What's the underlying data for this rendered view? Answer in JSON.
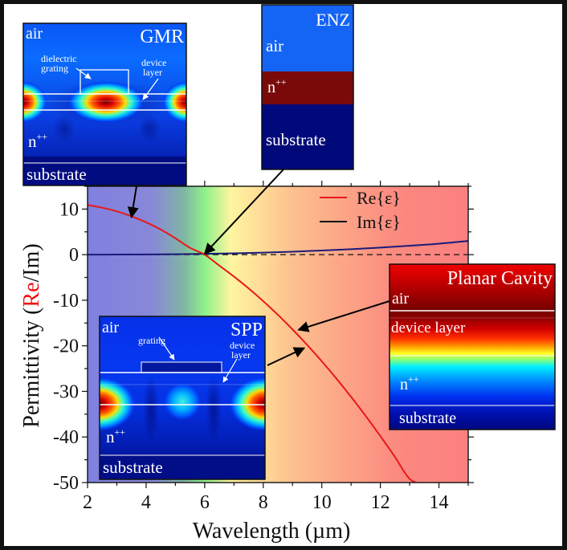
{
  "chart_data": {
    "type": "line",
    "title": "",
    "xlabel": "Wavelength (µm)",
    "ylabel_parts": [
      {
        "text": "Permittivity (",
        "color": "#111111"
      },
      {
        "text": "Re",
        "color": "#ee1111"
      },
      {
        "text": "/Im)",
        "color": "#111111"
      }
    ],
    "xlim": [
      2,
      15
    ],
    "ylim": [
      -50,
      15
    ],
    "xticks": [
      2,
      4,
      6,
      8,
      10,
      12,
      14
    ],
    "xtick_labels": [
      "2",
      "4",
      "6",
      "8",
      "10",
      "12",
      "14"
    ],
    "yticks": [
      10,
      0,
      -10,
      -20,
      -30,
      -40,
      -50
    ],
    "ytick_labels": [
      "10",
      "0",
      "-10",
      "-20",
      "-30",
      "-40",
      "-50"
    ],
    "grid": false,
    "legend_position": "top-right",
    "zero_line": {
      "y": 0,
      "style": "dashed",
      "color": "#111111"
    },
    "background_gradient": [
      {
        "x": 2,
        "color": "#8080e0"
      },
      {
        "x": 4.2,
        "color": "#8888d8"
      },
      {
        "x": 5.3,
        "color": "#7fb6a4"
      },
      {
        "x": 6.0,
        "color": "#8ff08a"
      },
      {
        "x": 6.9,
        "color": "#fff5a0"
      },
      {
        "x": 9.0,
        "color": "#fdc08e"
      },
      {
        "x": 12.5,
        "color": "#fb8a80"
      },
      {
        "x": 15,
        "color": "#fb8080"
      }
    ],
    "series": [
      {
        "name": "Re{ε}",
        "color": "#e81818",
        "x": [
          2,
          2.5,
          3,
          3.5,
          4,
          4.5,
          5,
          5.5,
          6,
          6.5,
          7,
          7.5,
          8,
          8.5,
          9,
          9.5,
          10,
          10.5,
          11,
          11.5,
          12,
          12.5,
          13,
          13.5
        ],
        "values": [
          10.9,
          10.3,
          9.5,
          8.4,
          7.1,
          5.5,
          3.6,
          1.5,
          0.0,
          -2.4,
          -4.8,
          -7.4,
          -10.2,
          -13.2,
          -16.4,
          -19.8,
          -23.4,
          -27.2,
          -31.2,
          -35.4,
          -39.8,
          -44.4,
          -49.2,
          -50.5
        ]
      },
      {
        "name": "Im{ε}",
        "color": "#1a1a7a",
        "x": [
          2,
          3,
          4,
          5,
          6,
          7,
          8,
          9,
          10,
          11,
          12,
          13,
          14,
          15
        ],
        "values": [
          0.0,
          0.02,
          0.05,
          0.1,
          0.18,
          0.3,
          0.45,
          0.65,
          0.9,
          1.2,
          1.55,
          1.95,
          2.4,
          3.0
        ]
      }
    ],
    "legend": [
      {
        "label": "Re{ε}",
        "color": "#e81818"
      },
      {
        "label": "Im{ε}",
        "color": "#111111"
      }
    ],
    "annotation_arrows": [
      {
        "from_inset": "GMR",
        "to": {
          "x": 3.5,
          "y": 8.2
        }
      },
      {
        "from_inset": "ENZ",
        "to": {
          "x": 6.0,
          "y": 0.2
        }
      },
      {
        "from_inset": "Planar Cavity",
        "to": {
          "x": 9.2,
          "y": -16.5
        }
      },
      {
        "from_inset": "SPP",
        "to": {
          "x": 9.4,
          "y": -20.5
        }
      }
    ]
  },
  "insets": {
    "gmr": {
      "title": "GMR",
      "labels": {
        "air": "air",
        "grating": [
          "dielectric",
          "grating"
        ],
        "device": [
          "device",
          "layer"
        ],
        "n": "n",
        "n_sup": "++",
        "substrate": "substrate"
      }
    },
    "enz": {
      "title": "ENZ",
      "labels": {
        "air": "air",
        "n": "n",
        "n_sup": "++",
        "substrate": "substrate"
      },
      "colors": {
        "air": "#1464f5",
        "n": "#7a0a0a",
        "substrate": "#00097a"
      }
    },
    "spp": {
      "title": "SPP",
      "labels": {
        "air": "air",
        "grating": "grating",
        "device": [
          "device",
          "layer"
        ],
        "n": "n",
        "n_sup": "++",
        "substrate": "substrate"
      }
    },
    "planar": {
      "title": "Planar Cavity",
      "labels": {
        "air": "air",
        "device": "device layer",
        "n": "n",
        "n_sup": "++",
        "substrate": "substrate"
      }
    }
  }
}
